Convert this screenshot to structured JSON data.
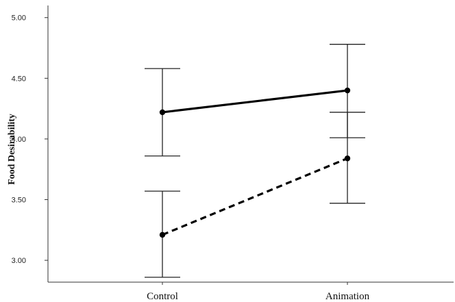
{
  "chart_data": {
    "type": "line",
    "title": "",
    "xlabel": "",
    "ylabel": "Food Desirability",
    "categories": [
      "Control",
      "Animation"
    ],
    "ylim": [
      2.82,
      5.1
    ],
    "yticks": [
      "3.00",
      "3.50",
      "4.00",
      "4.50",
      "5.00"
    ],
    "grid": false,
    "legend": "none",
    "series": [
      {
        "style": "solid",
        "values": [
          4.22,
          4.4
        ],
        "error_low": [
          3.86,
          4.01
        ],
        "error_high": [
          4.58,
          4.78
        ]
      },
      {
        "style": "dashed",
        "values": [
          3.21,
          3.84
        ],
        "error_low": [
          2.86,
          3.47
        ],
        "error_high": [
          3.57,
          4.22
        ]
      }
    ],
    "colors": {
      "axis": "#333333",
      "series": "#000000",
      "error_bar": "#222222"
    }
  }
}
